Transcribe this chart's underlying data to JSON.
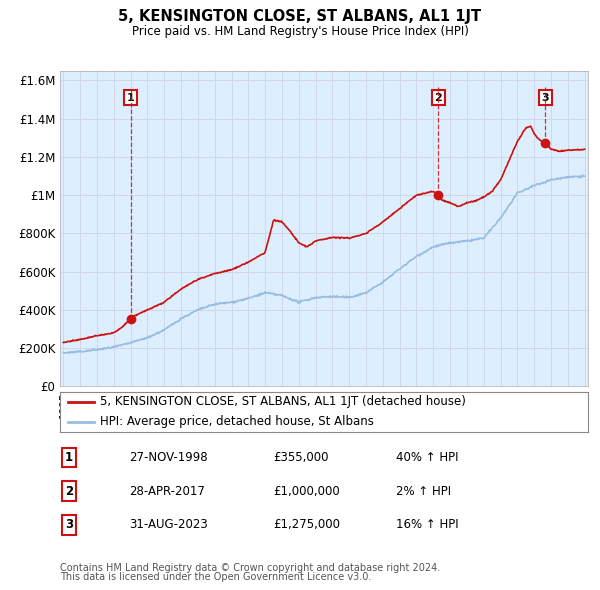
{
  "title": "5, KENSINGTON CLOSE, ST ALBANS, AL1 1JT",
  "subtitle": "Price paid vs. HM Land Registry's House Price Index (HPI)",
  "ylabel_ticks": [
    "£0",
    "£200K",
    "£400K",
    "£600K",
    "£800K",
    "£1M",
    "£1.2M",
    "£1.4M",
    "£1.6M"
  ],
  "ytick_values": [
    0,
    200000,
    400000,
    600000,
    800000,
    1000000,
    1200000,
    1400000,
    1600000
  ],
  "ylim": [
    0,
    1650000
  ],
  "xlim_start": 1994.8,
  "xlim_end": 2026.2,
  "hpi_color": "#99bde0",
  "price_color": "#cc1111",
  "grid_color": "#d0d8e8",
  "background_color_top": "#dce8f5",
  "background_color_bottom": "#eef4fb",
  "transactions": [
    {
      "label": "1",
      "date": "27-NOV-1998",
      "year": 1999.0,
      "price": 355000,
      "hpi_pct": "40%"
    },
    {
      "label": "2",
      "date": "28-APR-2017",
      "year": 2017.3,
      "price": 1000000,
      "hpi_pct": "2%"
    },
    {
      "label": "3",
      "date": "31-AUG-2023",
      "year": 2023.67,
      "price": 1275000,
      "hpi_pct": "16%"
    }
  ],
  "legend_line1": "5, KENSINGTON CLOSE, ST ALBANS, AL1 1JT (detached house)",
  "legend_line2": "HPI: Average price, detached house, St Albans",
  "footer1": "Contains HM Land Registry data © Crown copyright and database right 2024.",
  "footer2": "This data is licensed under the Open Government Licence v3.0."
}
